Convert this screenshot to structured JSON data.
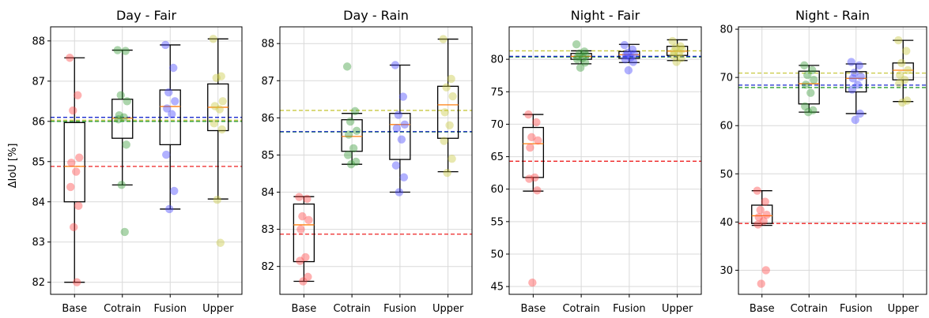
{
  "chart_data": [
    {
      "type": "box",
      "title": "Day - Fair",
      "ylabel": "ΔIoU [%]",
      "categories": [
        "Base",
        "Cotrain",
        "Fusion",
        "Upper"
      ],
      "ylim": [
        81.7,
        88.35
      ],
      "yticks": [
        82,
        83,
        84,
        85,
        86,
        87,
        88
      ],
      "grid": true,
      "series": [
        {
          "category": "Base",
          "color": "#ff4444",
          "box": {
            "whislo": 82.0,
            "q1": 84.0,
            "med": 84.88,
            "q3": 85.97,
            "whishi": 87.58
          },
          "points": [
            87.58,
            86.65,
            86.27,
            85.1,
            84.97,
            84.75,
            84.37,
            83.9,
            83.37,
            82.0
          ]
        },
        {
          "category": "Cotrain",
          "color": "#3a9a3a",
          "box": {
            "whislo": 84.42,
            "q1": 85.58,
            "med": 86.08,
            "q3": 86.55,
            "whishi": 87.77
          },
          "points": [
            87.77,
            87.75,
            86.65,
            86.5,
            86.15,
            86.1,
            86.05,
            85.42,
            84.42,
            83.25
          ]
        },
        {
          "category": "Fusion",
          "color": "#4444ff",
          "box": {
            "whislo": 83.82,
            "q1": 85.42,
            "med": 86.37,
            "q3": 86.78,
            "whishi": 87.9
          },
          "points": [
            87.9,
            87.33,
            86.72,
            86.5,
            86.32,
            86.18,
            85.17,
            84.27,
            83.82
          ]
        },
        {
          "category": "Upper",
          "color": "#c8c840",
          "box": {
            "whislo": 84.07,
            "q1": 85.77,
            "med": 86.35,
            "q3": 86.93,
            "whishi": 88.05
          },
          "points": [
            88.05,
            87.12,
            87.08,
            86.5,
            86.38,
            86.3,
            85.95,
            85.8,
            84.05,
            82.98
          ]
        }
      ],
      "reference_lines": [
        {
          "value": 84.88,
          "color": "#ee2222"
        },
        {
          "value": 86.0,
          "color": "#2a9a2a"
        },
        {
          "value": 86.1,
          "color": "#1a2acc"
        },
        {
          "value": 86.03,
          "color": "#c8c840"
        }
      ]
    },
    {
      "type": "box",
      "title": "Day - Rain",
      "ylabel": "",
      "categories": [
        "Base",
        "Cotrain",
        "Fusion",
        "Upper"
      ],
      "ylim": [
        81.25,
        88.45
      ],
      "yticks": [
        82,
        83,
        84,
        85,
        86,
        87,
        88
      ],
      "grid": true,
      "series": [
        {
          "category": "Base",
          "color": "#ff4444",
          "box": {
            "whislo": 81.6,
            "q1": 82.13,
            "med": 83.12,
            "q3": 83.68,
            "whishi": 83.88
          },
          "points": [
            83.87,
            83.82,
            83.35,
            83.25,
            83.0,
            82.25,
            82.15,
            81.72,
            81.6
          ]
        },
        {
          "category": "Cotrain",
          "color": "#3a9a3a",
          "box": {
            "whislo": 84.75,
            "q1": 85.1,
            "med": 85.5,
            "q3": 85.95,
            "whishi": 86.12
          },
          "points": [
            87.38,
            86.18,
            85.9,
            85.65,
            85.55,
            85.18,
            85.0,
            84.82,
            84.75
          ]
        },
        {
          "category": "Fusion",
          "color": "#4444ff",
          "box": {
            "whislo": 84.0,
            "q1": 84.88,
            "med": 85.82,
            "q3": 86.12,
            "whishi": 87.42
          },
          "points": [
            87.42,
            86.57,
            86.08,
            85.82,
            85.72,
            85.42,
            84.72,
            84.4,
            84.0
          ]
        },
        {
          "category": "Upper",
          "color": "#c8c840",
          "box": {
            "whislo": 84.55,
            "q1": 85.45,
            "med": 86.35,
            "q3": 86.85,
            "whishi": 88.12
          },
          "points": [
            88.12,
            87.05,
            86.82,
            86.58,
            86.15,
            85.8,
            85.38,
            84.9,
            84.52
          ]
        }
      ],
      "reference_lines": [
        {
          "value": 82.87,
          "color": "#ee2222"
        },
        {
          "value": 85.62,
          "color": "#2a9a2a"
        },
        {
          "value": 85.63,
          "color": "#1a2acc"
        },
        {
          "value": 86.2,
          "color": "#c8c840"
        }
      ]
    },
    {
      "type": "box",
      "title": "Night - Fair",
      "ylabel": "",
      "categories": [
        "Base",
        "Cotrain",
        "Fusion",
        "Upper"
      ],
      "ylim": [
        43.8,
        85.0
      ],
      "yticks": [
        45,
        50,
        55,
        60,
        65,
        70,
        75,
        80
      ],
      "grid": true,
      "series": [
        {
          "category": "Base",
          "color": "#ff4444",
          "box": {
            "whislo": 59.7,
            "q1": 61.8,
            "med": 67.0,
            "q3": 69.5,
            "whishi": 71.5
          },
          "points": [
            71.5,
            70.3,
            68.0,
            67.5,
            66.4,
            61.8,
            61.6,
            59.8,
            45.6
          ]
        },
        {
          "category": "Cotrain",
          "color": "#3a9a3a",
          "box": {
            "whislo": 79.3,
            "q1": 80.0,
            "med": 80.45,
            "q3": 80.9,
            "whishi": 81.3
          },
          "points": [
            82.3,
            81.2,
            80.9,
            80.6,
            80.4,
            80.2,
            80.0,
            79.5,
            78.7
          ]
        },
        {
          "category": "Fusion",
          "color": "#4444ff",
          "box": {
            "whislo": 79.5,
            "q1": 80.15,
            "med": 80.7,
            "q3": 81.2,
            "whishi": 82.3
          },
          "points": [
            82.2,
            81.5,
            81.0,
            80.8,
            80.6,
            80.3,
            80.0,
            79.6,
            78.3
          ]
        },
        {
          "category": "Upper",
          "color": "#c8c840",
          "box": {
            "whislo": 79.8,
            "q1": 80.6,
            "med": 81.25,
            "q3": 82.0,
            "whishi": 83.0
          },
          "points": [
            82.8,
            82.0,
            81.8,
            81.5,
            81.2,
            80.9,
            80.6,
            80.2,
            79.6
          ]
        }
      ],
      "reference_lines": [
        {
          "value": 64.3,
          "color": "#ee2222"
        },
        {
          "value": 80.35,
          "color": "#2a9a2a"
        },
        {
          "value": 80.45,
          "color": "#1a2acc"
        },
        {
          "value": 81.3,
          "color": "#c8c840"
        }
      ]
    },
    {
      "type": "box",
      "title": "Night - Rain",
      "ylabel": "",
      "categories": [
        "Base",
        "Cotrain",
        "Fusion",
        "Upper"
      ],
      "ylim": [
        25.0,
        80.5
      ],
      "yticks": [
        30,
        40,
        50,
        60,
        70,
        80
      ],
      "grid": true,
      "series": [
        {
          "category": "Base",
          "color": "#ff4444",
          "box": {
            "whislo": 39.3,
            "q1": 39.7,
            "med": 41.3,
            "q3": 43.5,
            "whishi": 46.5
          },
          "points": [
            46.5,
            44.2,
            42.5,
            41.5,
            41.0,
            40.2,
            39.5,
            30.0,
            27.2
          ]
        },
        {
          "category": "Cotrain",
          "color": "#3a9a3a",
          "box": {
            "whislo": 62.8,
            "q1": 64.5,
            "med": 68.7,
            "q3": 71.3,
            "whishi": 72.5
          },
          "points": [
            72.5,
            71.5,
            70.5,
            69.5,
            68.5,
            66.8,
            64.0,
            63.2,
            62.8
          ]
        },
        {
          "category": "Fusion",
          "color": "#4444ff",
          "box": {
            "whislo": 62.5,
            "q1": 67.0,
            "med": 69.8,
            "q3": 71.2,
            "whishi": 72.8
          },
          "points": [
            73.2,
            72.5,
            71.0,
            70.2,
            69.8,
            68.5,
            67.5,
            62.5,
            61.2
          ]
        },
        {
          "category": "Upper",
          "color": "#c8c840",
          "box": {
            "whislo": 65.0,
            "q1": 69.5,
            "med": 71.5,
            "q3": 73.0,
            "whishi": 77.7
          },
          "points": [
            77.7,
            75.5,
            73.0,
            71.5,
            70.5,
            69.5,
            68.8,
            65.2,
            64.8
          ]
        }
      ],
      "reference_lines": [
        {
          "value": 39.7,
          "color": "#ee2222"
        },
        {
          "value": 67.9,
          "color": "#2a9a2a"
        },
        {
          "value": 68.4,
          "color": "#1a2acc"
        },
        {
          "value": 70.9,
          "color": "#c8c840"
        }
      ]
    }
  ]
}
